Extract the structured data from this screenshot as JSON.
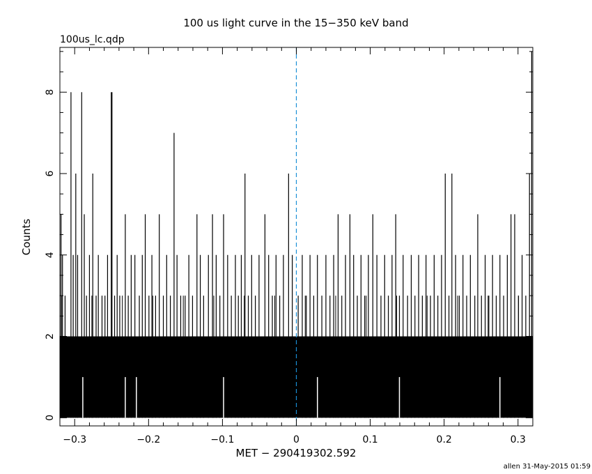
{
  "chart_data": {
    "type": "bar",
    "title": "100 us light curve in the 15−350 keV band",
    "subtitle": "100us_lc.qdp",
    "xlabel": "MET − 290419302.592",
    "ylabel": "Counts",
    "xlim": [
      -0.32,
      0.32
    ],
    "ylim": [
      -0.2,
      9.1
    ],
    "bin_width": 0.0001,
    "x_ticks": [
      {
        "value": -0.3,
        "label": "−0.3"
      },
      {
        "value": -0.2,
        "label": "−0.2"
      },
      {
        "value": -0.1,
        "label": "−0.1"
      },
      {
        "value": 0,
        "label": "0"
      },
      {
        "value": 0.1,
        "label": "0.1"
      },
      {
        "value": 0.2,
        "label": "0.2"
      },
      {
        "value": 0.3,
        "label": "0.3"
      }
    ],
    "y_ticks": [
      {
        "value": 0,
        "label": "0"
      },
      {
        "value": 2,
        "label": "2"
      },
      {
        "value": 4,
        "label": "4"
      },
      {
        "value": 6,
        "label": "6"
      },
      {
        "value": 8,
        "label": "8"
      }
    ],
    "trigger_line": {
      "x": 0,
      "color": "#1a8fd6"
    },
    "spikes": [
      {
        "x": -0.3185,
        "y": 5
      },
      {
        "x": -0.3165,
        "y": 4
      },
      {
        "x": -0.313,
        "y": 3
      },
      {
        "x": -0.305,
        "y": 8
      },
      {
        "x": -0.302,
        "y": 4
      },
      {
        "x": -0.2985,
        "y": 6
      },
      {
        "x": -0.296,
        "y": 4
      },
      {
        "x": -0.2905,
        "y": 8
      },
      {
        "x": -0.287,
        "y": 5
      },
      {
        "x": -0.284,
        "y": 3
      },
      {
        "x": -0.28,
        "y": 4
      },
      {
        "x": -0.2755,
        "y": 6
      },
      {
        "x": -0.271,
        "y": 3
      },
      {
        "x": -0.268,
        "y": 4
      },
      {
        "x": -0.263,
        "y": 3
      },
      {
        "x": -0.259,
        "y": 3
      },
      {
        "x": -0.2555,
        "y": 4
      },
      {
        "x": -0.2505,
        "y": 8
      },
      {
        "x": -0.2495,
        "y": 8
      },
      {
        "x": -0.246,
        "y": 3
      },
      {
        "x": -0.2425,
        "y": 4
      },
      {
        "x": -0.239,
        "y": 3
      },
      {
        "x": -0.2315,
        "y": 5
      },
      {
        "x": -0.2275,
        "y": 3
      },
      {
        "x": -0.2235,
        "y": 4
      },
      {
        "x": -0.2185,
        "y": 4
      },
      {
        "x": -0.2125,
        "y": 3
      },
      {
        "x": -0.2085,
        "y": 4
      },
      {
        "x": -0.2045,
        "y": 5
      },
      {
        "x": -0.1995,
        "y": 3
      },
      {
        "x": -0.1955,
        "y": 4
      },
      {
        "x": -0.1905,
        "y": 3
      },
      {
        "x": -0.1855,
        "y": 5
      },
      {
        "x": -0.18,
        "y": 3
      },
      {
        "x": -0.1755,
        "y": 4
      },
      {
        "x": -0.1705,
        "y": 3
      },
      {
        "x": -0.1655,
        "y": 7
      },
      {
        "x": -0.1615,
        "y": 4
      },
      {
        "x": -0.1565,
        "y": 3
      },
      {
        "x": -0.1505,
        "y": 3
      },
      {
        "x": -0.1455,
        "y": 4
      },
      {
        "x": -0.1405,
        "y": 3
      },
      {
        "x": -0.1345,
        "y": 5
      },
      {
        "x": -0.13,
        "y": 4
      },
      {
        "x": -0.1255,
        "y": 3
      },
      {
        "x": -0.119,
        "y": 4
      },
      {
        "x": -0.1135,
        "y": 5
      },
      {
        "x": -0.1085,
        "y": 4
      },
      {
        "x": -0.1035,
        "y": 3
      },
      {
        "x": -0.0985,
        "y": 5
      },
      {
        "x": -0.093,
        "y": 4
      },
      {
        "x": -0.088,
        "y": 3
      },
      {
        "x": -0.0825,
        "y": 4
      },
      {
        "x": -0.0785,
        "y": 3
      },
      {
        "x": -0.0745,
        "y": 4
      },
      {
        "x": -0.0695,
        "y": 6
      },
      {
        "x": -0.065,
        "y": 3
      },
      {
        "x": -0.0605,
        "y": 4
      },
      {
        "x": -0.0555,
        "y": 3
      },
      {
        "x": -0.0505,
        "y": 4
      },
      {
        "x": -0.0425,
        "y": 5
      },
      {
        "x": -0.0375,
        "y": 4
      },
      {
        "x": -0.0325,
        "y": 3
      },
      {
        "x": -0.0275,
        "y": 4
      },
      {
        "x": -0.0225,
        "y": 3
      },
      {
        "x": -0.0175,
        "y": 4
      },
      {
        "x": -0.0105,
        "y": 6
      },
      {
        "x": -0.0055,
        "y": 4
      },
      {
        "x": 0.0025,
        "y": 3
      },
      {
        "x": 0.008,
        "y": 4
      },
      {
        "x": 0.0135,
        "y": 3
      },
      {
        "x": 0.0185,
        "y": 4
      },
      {
        "x": 0.0235,
        "y": 3
      },
      {
        "x": 0.0285,
        "y": 4
      },
      {
        "x": 0.0345,
        "y": 3
      },
      {
        "x": 0.04,
        "y": 4
      },
      {
        "x": 0.0455,
        "y": 3
      },
      {
        "x": 0.0505,
        "y": 4
      },
      {
        "x": 0.0565,
        "y": 5
      },
      {
        "x": 0.0615,
        "y": 3
      },
      {
        "x": 0.0665,
        "y": 4
      },
      {
        "x": 0.0725,
        "y": 5
      },
      {
        "x": 0.0775,
        "y": 4
      },
      {
        "x": 0.0825,
        "y": 3
      },
      {
        "x": 0.0875,
        "y": 4
      },
      {
        "x": 0.0925,
        "y": 3
      },
      {
        "x": 0.0975,
        "y": 4
      },
      {
        "x": 0.1035,
        "y": 5
      },
      {
        "x": 0.109,
        "y": 4
      },
      {
        "x": 0.1145,
        "y": 3
      },
      {
        "x": 0.1195,
        "y": 4
      },
      {
        "x": 0.1245,
        "y": 3
      },
      {
        "x": 0.1295,
        "y": 4
      },
      {
        "x": 0.1345,
        "y": 5
      },
      {
        "x": 0.1395,
        "y": 3
      },
      {
        "x": 0.1445,
        "y": 4
      },
      {
        "x": 0.1505,
        "y": 3
      },
      {
        "x": 0.1555,
        "y": 4
      },
      {
        "x": 0.1605,
        "y": 3
      },
      {
        "x": 0.1655,
        "y": 4
      },
      {
        "x": 0.1705,
        "y": 3
      },
      {
        "x": 0.1755,
        "y": 4
      },
      {
        "x": 0.1815,
        "y": 3
      },
      {
        "x": 0.1865,
        "y": 4
      },
      {
        "x": 0.1915,
        "y": 3
      },
      {
        "x": 0.1965,
        "y": 4
      },
      {
        "x": 0.2015,
        "y": 6
      },
      {
        "x": 0.2065,
        "y": 3
      },
      {
        "x": 0.2105,
        "y": 6
      },
      {
        "x": 0.2155,
        "y": 4
      },
      {
        "x": 0.2205,
        "y": 3
      },
      {
        "x": 0.2255,
        "y": 4
      },
      {
        "x": 0.2305,
        "y": 3
      },
      {
        "x": 0.2355,
        "y": 4
      },
      {
        "x": 0.2415,
        "y": 3
      },
      {
        "x": 0.2455,
        "y": 5
      },
      {
        "x": 0.2505,
        "y": 3
      },
      {
        "x": 0.2555,
        "y": 4
      },
      {
        "x": 0.2605,
        "y": 3
      },
      {
        "x": 0.2655,
        "y": 4
      },
      {
        "x": 0.2705,
        "y": 3
      },
      {
        "x": 0.2755,
        "y": 4
      },
      {
        "x": 0.2805,
        "y": 3
      },
      {
        "x": 0.2855,
        "y": 4
      },
      {
        "x": 0.2905,
        "y": 5
      },
      {
        "x": 0.2955,
        "y": 5
      },
      {
        "x": 0.3005,
        "y": 3
      },
      {
        "x": 0.3055,
        "y": 4
      },
      {
        "x": 0.3105,
        "y": 3
      },
      {
        "x": 0.3155,
        "y": 6
      },
      {
        "x": 0.3185,
        "y": 9
      }
    ],
    "gaps": [
      {
        "x": -0.289,
        "y": 0
      },
      {
        "x": -0.2315,
        "y": 0
      },
      {
        "x": -0.2165,
        "y": 0
      },
      {
        "x": -0.0985,
        "y": 0
      },
      {
        "x": 0.0285,
        "y": 0
      },
      {
        "x": 0.1395,
        "y": 0
      },
      {
        "x": 0.2755,
        "y": 0
      }
    ],
    "grid": false,
    "legend": "none"
  },
  "footer": {
    "credit": "allen 31-May-2015 01:59"
  }
}
